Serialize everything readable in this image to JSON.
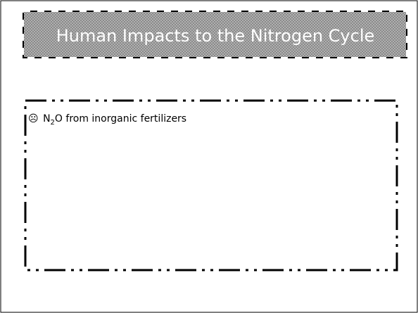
{
  "slide": {
    "title": "Human Impacts to the Nitrogen Cycle",
    "bullets": [
      {
        "icon": "☹",
        "formula": "N",
        "subscript": "2",
        "text": "O from inorganic fertilizers"
      }
    ]
  }
}
